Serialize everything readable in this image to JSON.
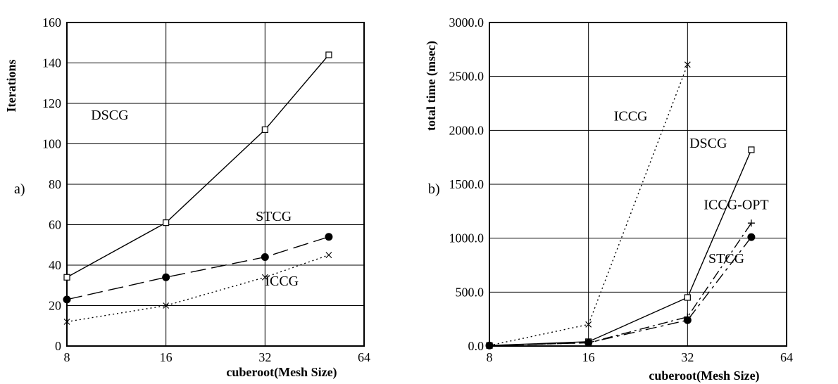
{
  "chart_data": [
    {
      "type": "line",
      "panel_label": "a)",
      "xlabel": "cuberoot(Mesh Size)",
      "ylabel": "Iterations",
      "x_scale": "log2",
      "xlim": [
        8,
        64
      ],
      "ylim": [
        0,
        160
      ],
      "x_ticks": [
        "8",
        "16",
        "32",
        "64"
      ],
      "y_ticks": [
        "0",
        "20",
        "40",
        "60",
        "80",
        "100",
        "120",
        "140",
        "160"
      ],
      "grid": true,
      "series": [
        {
          "name": "DSCG",
          "marker": "square",
          "line": "solid",
          "x": [
            8,
            16,
            32,
            50
          ],
          "y": [
            34,
            61,
            107,
            144
          ]
        },
        {
          "name": "STCG",
          "marker": "filled-circle",
          "line": "dashed",
          "x": [
            8,
            16,
            32,
            50
          ],
          "y": [
            23,
            34,
            44,
            54
          ]
        },
        {
          "name": "ICCG",
          "marker": "x",
          "line": "dotted",
          "x": [
            8,
            16,
            32,
            50
          ],
          "y": [
            12,
            20,
            34,
            45
          ]
        }
      ]
    },
    {
      "type": "line",
      "panel_label": "b)",
      "xlabel": "cuberoot(Mesh Size)",
      "ylabel": "total time (msec)",
      "x_scale": "log2",
      "xlim": [
        8,
        64
      ],
      "ylim": [
        0,
        3000
      ],
      "x_ticks": [
        "8",
        "16",
        "32",
        "64"
      ],
      "y_ticks": [
        "0.0",
        "500.0",
        "1000.0",
        "1500.0",
        "2000.0",
        "2500.0",
        "3000.0"
      ],
      "grid": true,
      "series": [
        {
          "name": "ICCG",
          "marker": "x",
          "line": "dotted",
          "x": [
            8,
            16,
            32
          ],
          "y": [
            5,
            200,
            2610
          ]
        },
        {
          "name": "DSCG",
          "marker": "square",
          "line": "solid",
          "x": [
            8,
            16,
            32,
            50
          ],
          "y": [
            5,
            40,
            450,
            1820
          ]
        },
        {
          "name": "ICCG-OPT",
          "marker": "plus",
          "line": "dashdot",
          "x": [
            8,
            16,
            32,
            50
          ],
          "y": [
            5,
            30,
            270,
            1140
          ]
        },
        {
          "name": "STCG",
          "marker": "filled-circle",
          "line": "longdash",
          "x": [
            8,
            16,
            32,
            50
          ],
          "y": [
            5,
            30,
            240,
            1010
          ]
        }
      ]
    }
  ]
}
